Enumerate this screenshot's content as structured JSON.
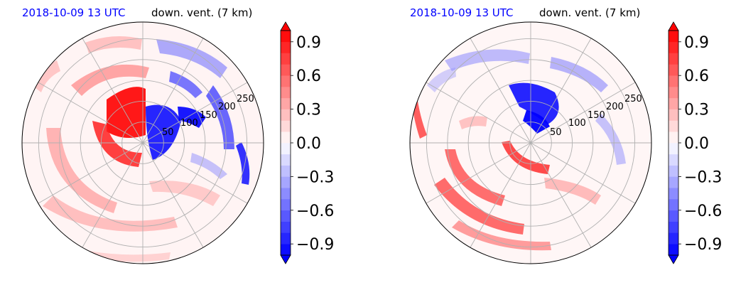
{
  "colors": {
    "positive": "#ff0000",
    "negative": "#0000ff",
    "grid": "#b0b0b0",
    "frame": "#000000"
  },
  "chart_data": [
    {
      "type": "heatmap",
      "projection": "polar",
      "title_left": "2018-10-09 13 UTC",
      "title_right": "down. vent. (7 km)",
      "radial_ticks": [
        "50",
        "100",
        "150",
        "200",
        "250"
      ],
      "radial_values": [
        50,
        100,
        150,
        200,
        250
      ],
      "r_max": 290,
      "grid": true,
      "colorbar": {
        "vmin": -1.0,
        "vmax": 1.0,
        "levels": 20,
        "extend": "both",
        "cmap": "bwr",
        "ticks": [
          "0.9",
          "0.6",
          "0.3",
          "0.0",
          "−0.3",
          "−0.6",
          "−0.9"
        ],
        "tick_values": [
          0.9,
          0.6,
          0.3,
          0.0,
          -0.3,
          -0.6,
          -0.9
        ]
      }
    },
    {
      "type": "heatmap",
      "projection": "polar",
      "title_left": "2018-10-09 13 UTC",
      "title_right": "down. vent. (7 km)",
      "radial_ticks": [
        "50",
        "100",
        "150",
        "200",
        "250"
      ],
      "radial_values": [
        50,
        100,
        150,
        200,
        250
      ],
      "r_max": 290,
      "grid": true,
      "colorbar": {
        "vmin": -1.0,
        "vmax": 1.0,
        "levels": 20,
        "extend": "both",
        "cmap": "bwr",
        "ticks": [
          "0.9",
          "0.6",
          "0.3",
          "0.0",
          "−0.3",
          "−0.6",
          "−0.9"
        ],
        "tick_values": [
          0.9,
          0.6,
          0.3,
          0.0,
          -0.3,
          -0.6,
          -0.9
        ]
      }
    }
  ]
}
